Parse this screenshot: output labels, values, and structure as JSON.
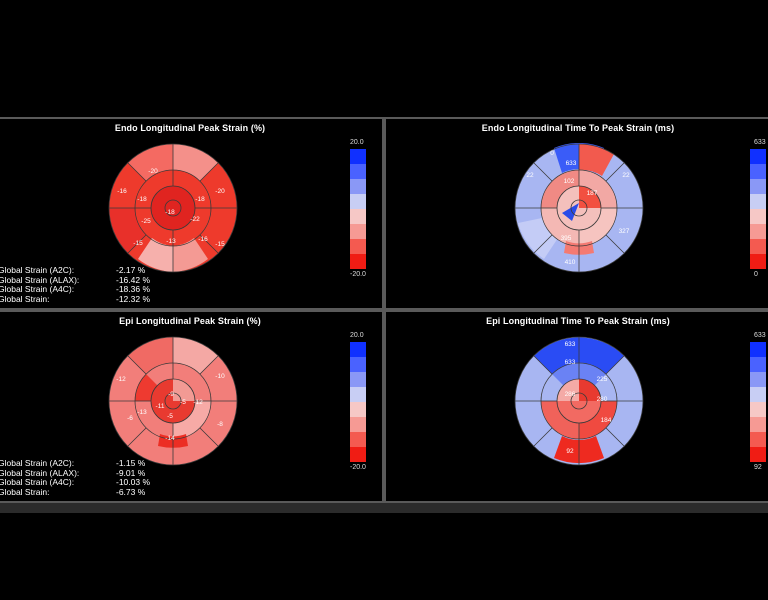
{
  "panels": [
    {
      "title": "Endo Longitudinal Peak Strain (%)",
      "scale_max": "20.0",
      "scale_min": "-20.0",
      "base_color": "#f23a2e",
      "segment_labels": [
        "-16",
        "-18",
        "-20",
        "-18",
        "-20",
        "-25",
        "-18",
        "-22",
        "-13",
        "-15",
        "-16",
        "-15"
      ],
      "stats": [
        {
          "label": "Global Strain (A2C):",
          "value": "-2.17 %"
        },
        {
          "label": "Global Strain (ALAX):",
          "value": "-16.42 %"
        },
        {
          "label": "Global Strain (A4C):",
          "value": "-18.36 %"
        },
        {
          "label": "Global Strain:",
          "value": "-12.32 %"
        }
      ]
    },
    {
      "title": "Endo Longitudinal Time To Peak Strain (ms)",
      "scale_max": "633",
      "scale_min": "0",
      "base_color": "#9fb0f2",
      "segment_labels": [
        "633",
        "102",
        "0",
        "22",
        "22",
        "187",
        "327",
        "410",
        "395"
      ]
    },
    {
      "title": "Epi Longitudinal Peak Strain (%)",
      "scale_max": "20.0",
      "scale_min": "-20.0",
      "base_color": "#f0787a",
      "segment_labels": [
        "-12",
        "-10",
        "-9",
        "-5",
        "-11",
        "-13",
        "-5",
        "-14",
        "-6",
        "-12",
        "-8"
      ],
      "stats": [
        {
          "label": "Global Strain (A2C):",
          "value": "-1.15 %"
        },
        {
          "label": "Global Strain (ALAX):",
          "value": "-9.01 %"
        },
        {
          "label": "Global Strain (A4C):",
          "value": "-10.03 %"
        },
        {
          "label": "Global Strain:",
          "value": "-6.73 %"
        }
      ]
    },
    {
      "title": "Epi Longitudinal Time To Peak Strain (ms)",
      "scale_max": "633",
      "scale_min": "92",
      "base_color": "#9fb0f2",
      "segment_labels": [
        "633",
        "633",
        "225",
        "286",
        "280",
        "184",
        "92"
      ]
    }
  ]
}
